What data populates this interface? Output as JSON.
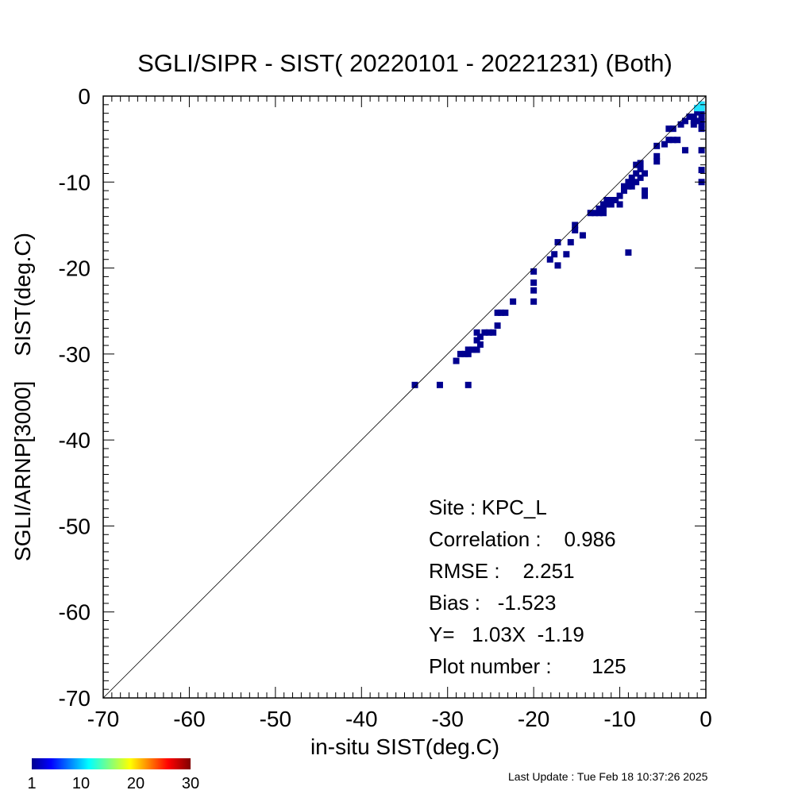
{
  "chart_data": {
    "type": "heatmap",
    "title": "SGLI/SIPR - SIST( 20220101 - 20221231) (Both)",
    "xlabel": "in-situ SIST(deg.C)",
    "ylabel": "SGLI/ARNP[3000]    SIST(deg.C)",
    "xlim": [
      -70,
      0
    ],
    "ylim": [
      -70,
      0
    ],
    "x_ticks": [
      "-70",
      "-60",
      "-50",
      "-40",
      "-30",
      "-20",
      "-10",
      "0"
    ],
    "y_ticks": [
      "0",
      "-10",
      "-20",
      "-30",
      "-40",
      "-50",
      "-60",
      "-70"
    ],
    "reference_line": "1:1",
    "grid": false,
    "stats": [
      "Site : KPC_L",
      "Correlation :    0.986",
      "RMSE :    2.251",
      "Bias :   -1.523",
      "Y=   1.03X  -1.19",
      "Plot number :       125"
    ],
    "colorbar": {
      "min": 1,
      "max": 30,
      "tick_labels": [
        "1",
        "10",
        "20",
        "30"
      ],
      "colormap": "jet"
    },
    "point_color": "#00008f",
    "high_count_color": "#22e3ff",
    "cells": [
      {
        "x": -33.8,
        "y": -33.6
      },
      {
        "x": -30.9,
        "y": -33.6
      },
      {
        "x": -27.6,
        "y": -33.6
      },
      {
        "x": -29.0,
        "y": -30.8
      },
      {
        "x": -28.5,
        "y": -30.0
      },
      {
        "x": -28.0,
        "y": -30.0
      },
      {
        "x": -27.6,
        "y": -30.0
      },
      {
        "x": -27.6,
        "y": -29.5
      },
      {
        "x": -27.1,
        "y": -29.5
      },
      {
        "x": -26.6,
        "y": -29.5
      },
      {
        "x": -26.2,
        "y": -28.9
      },
      {
        "x": -26.6,
        "y": -28.4
      },
      {
        "x": -26.2,
        "y": -28.0
      },
      {
        "x": -26.6,
        "y": -27.5
      },
      {
        "x": -25.7,
        "y": -27.5
      },
      {
        "x": -25.2,
        "y": -27.5
      },
      {
        "x": -24.7,
        "y": -27.5
      },
      {
        "x": -24.2,
        "y": -26.7
      },
      {
        "x": -24.2,
        "y": -25.2
      },
      {
        "x": -23.8,
        "y": -25.2
      },
      {
        "x": -23.3,
        "y": -25.2
      },
      {
        "x": -22.4,
        "y": -23.9
      },
      {
        "x": -20.0,
        "y": -23.9
      },
      {
        "x": -20.0,
        "y": -22.6
      },
      {
        "x": -20.0,
        "y": -21.7
      },
      {
        "x": -20.0,
        "y": -20.4
      },
      {
        "x": -18.1,
        "y": -19.0
      },
      {
        "x": -17.2,
        "y": -19.7
      },
      {
        "x": -17.6,
        "y": -18.4
      },
      {
        "x": -16.2,
        "y": -18.4
      },
      {
        "x": -17.2,
        "y": -17.0
      },
      {
        "x": -15.7,
        "y": -17.0
      },
      {
        "x": -14.3,
        "y": -16.2
      },
      {
        "x": -15.2,
        "y": -15.6
      },
      {
        "x": -15.2,
        "y": -15.0
      },
      {
        "x": -9.0,
        "y": -18.2
      },
      {
        "x": -13.4,
        "y": -13.6
      },
      {
        "x": -12.9,
        "y": -13.6
      },
      {
        "x": -12.4,
        "y": -13.6
      },
      {
        "x": -11.9,
        "y": -13.6
      },
      {
        "x": -12.4,
        "y": -13.1
      },
      {
        "x": -11.9,
        "y": -13.1
      },
      {
        "x": -11.9,
        "y": -12.6
      },
      {
        "x": -11.5,
        "y": -12.6
      },
      {
        "x": -11.0,
        "y": -12.6
      },
      {
        "x": -11.5,
        "y": -12.1
      },
      {
        "x": -11.0,
        "y": -12.1
      },
      {
        "x": -10.5,
        "y": -12.1
      },
      {
        "x": -10.0,
        "y": -12.6
      },
      {
        "x": -10.0,
        "y": -11.6
      },
      {
        "x": -9.5,
        "y": -11.0
      },
      {
        "x": -9.5,
        "y": -10.5
      },
      {
        "x": -9.0,
        "y": -10.5
      },
      {
        "x": -9.0,
        "y": -10.0
      },
      {
        "x": -8.6,
        "y": -10.5
      },
      {
        "x": -8.6,
        "y": -10.0
      },
      {
        "x": -8.6,
        "y": -9.5
      },
      {
        "x": -8.1,
        "y": -10.0
      },
      {
        "x": -8.1,
        "y": -9.0
      },
      {
        "x": -7.6,
        "y": -8.5
      },
      {
        "x": -7.6,
        "y": -9.5
      },
      {
        "x": -7.1,
        "y": -9.0
      },
      {
        "x": -7.1,
        "y": -11.6
      },
      {
        "x": -7.1,
        "y": -11.0
      },
      {
        "x": -7.6,
        "y": -7.8
      },
      {
        "x": -8.1,
        "y": -8.0
      },
      {
        "x": -5.7,
        "y": -7.6
      },
      {
        "x": -5.7,
        "y": -7.0
      },
      {
        "x": -5.7,
        "y": -5.8
      },
      {
        "x": -4.8,
        "y": -5.6
      },
      {
        "x": -4.3,
        "y": -5.1
      },
      {
        "x": -3.8,
        "y": -5.1
      },
      {
        "x": -3.3,
        "y": -5.1
      },
      {
        "x": -4.3,
        "y": -3.8
      },
      {
        "x": -3.8,
        "y": -3.8
      },
      {
        "x": -2.9,
        "y": -3.3
      },
      {
        "x": -2.4,
        "y": -2.9
      },
      {
        "x": -2.4,
        "y": -6.3
      },
      {
        "x": -1.9,
        "y": -2.4
      },
      {
        "x": -1.4,
        "y": -2.4
      },
      {
        "x": -1.4,
        "y": -2.9
      },
      {
        "x": -1.4,
        "y": -3.3
      },
      {
        "x": -1.0,
        "y": -1.4
      },
      {
        "x": -1.0,
        "y": -1.9
      },
      {
        "x": -0.5,
        "y": -1.0
      },
      {
        "x": -0.5,
        "y": -1.4
      },
      {
        "x": -0.5,
        "y": -2.4
      },
      {
        "x": -0.5,
        "y": -3.3
      },
      {
        "x": -0.5,
        "y": -3.8
      },
      {
        "x": -0.5,
        "y": -6.3
      },
      {
        "x": -0.5,
        "y": -8.6
      },
      {
        "x": -0.5,
        "y": -10.0
      },
      {
        "x": -1.0,
        "y": -2.9
      },
      {
        "x": -0.5,
        "y": -1.9
      },
      {
        "x": -0.5,
        "y": -2.9
      }
    ],
    "high_count_cells": [
      {
        "x": -0.5,
        "y": -1.0
      },
      {
        "x": -0.5,
        "y": -1.4
      },
      {
        "x": -1.0,
        "y": -1.4
      }
    ]
  },
  "footer": {
    "last_update": "Last Update : Tue Feb 18 10:37:26 2025"
  }
}
